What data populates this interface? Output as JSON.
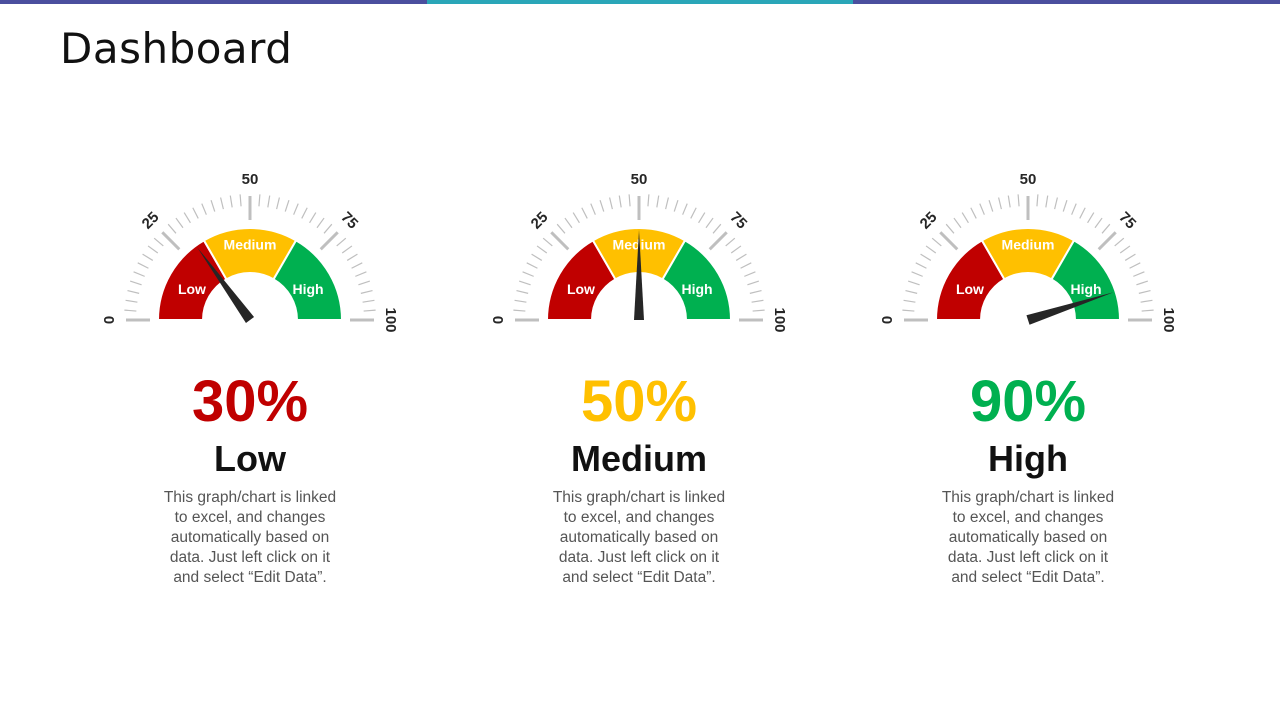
{
  "title": "Dashboard",
  "colors": {
    "bar_segments": [
      "#4b4f9e",
      "#2aa6b8",
      "#4b4f9e"
    ],
    "low": "#c00000",
    "medium": "#ffc000",
    "high": "#00b050",
    "needle": "#262626",
    "ticks": "#bfbfbf",
    "tick_labels": "#262626"
  },
  "chart_data": [
    {
      "type": "gauge",
      "range": [
        0,
        100
      ],
      "tick_labels": [
        "0",
        "25",
        "50",
        "75",
        "100"
      ],
      "bands": [
        {
          "label": "Low",
          "from": 0,
          "to": 33.3
        },
        {
          "label": "Medium",
          "from": 33.3,
          "to": 66.7
        },
        {
          "label": "High",
          "from": 66.7,
          "to": 100
        }
      ],
      "value": 30,
      "value_label": "30%",
      "level": "Low",
      "description": "This graph/chart is linked to excel, and changes automatically based on data. Just left click on it and select “Edit Data”."
    },
    {
      "type": "gauge",
      "range": [
        0,
        100
      ],
      "tick_labels": [
        "0",
        "25",
        "50",
        "75",
        "100"
      ],
      "bands": [
        {
          "label": "Low",
          "from": 0,
          "to": 33.3
        },
        {
          "label": "Medium",
          "from": 33.3,
          "to": 66.7
        },
        {
          "label": "High",
          "from": 66.7,
          "to": 100
        }
      ],
      "value": 50,
      "value_label": "50%",
      "level": "Medium",
      "description": "This graph/chart is linked to excel, and changes automatically based on data. Just left click on it and select “Edit Data”."
    },
    {
      "type": "gauge",
      "range": [
        0,
        100
      ],
      "tick_labels": [
        "0",
        "25",
        "50",
        "75",
        "100"
      ],
      "bands": [
        {
          "label": "Low",
          "from": 0,
          "to": 33.3
        },
        {
          "label": "Medium",
          "from": 33.3,
          "to": 66.7
        },
        {
          "label": "High",
          "from": 66.7,
          "to": 100
        }
      ],
      "value": 90,
      "value_label": "90%",
      "level": "High",
      "description": "This graph/chart is linked to excel, and changes automatically based on data. Just left click on it and select “Edit Data”."
    }
  ]
}
